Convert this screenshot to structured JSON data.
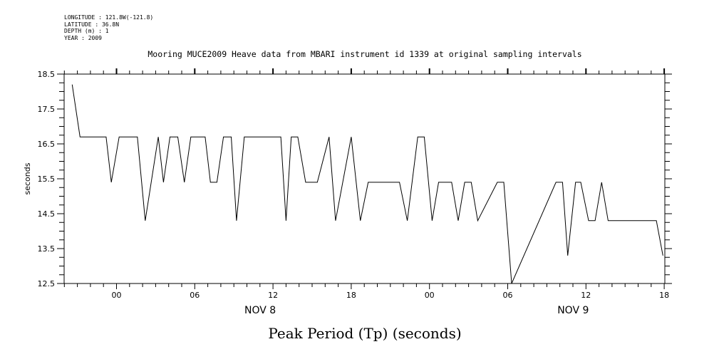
{
  "meta": {
    "longitude": "LONGITUDE : 121.8W(-121.8)",
    "latitude": "LATITUDE : 36.8N",
    "depth": "DEPTH (m) : 1",
    "year": "YEAR : 2009"
  },
  "chart_data": {
    "type": "line",
    "title": "Mooring MUCE2009 Heave data from MBARI instrument id 1339 at original sampling intervals",
    "ylabel": "seconds",
    "xlabel": "Peak Period (Tp) (seconds)",
    "ylim": [
      12.5,
      18.5
    ],
    "xlim": [
      -2.4,
      42.0
    ],
    "y_ticks": [
      "18.5",
      "17.5",
      "16.5",
      "15.5",
      "14.5",
      "13.5",
      "12.5"
    ],
    "x_ticks": [
      {
        "h": 0,
        "label": "00"
      },
      {
        "h": 6,
        "label": "06"
      },
      {
        "h": 12,
        "label": "12"
      },
      {
        "h": 18,
        "label": "18"
      },
      {
        "h": 24,
        "label": "00"
      },
      {
        "h": 30,
        "label": "06"
      },
      {
        "h": 36,
        "label": "12"
      },
      {
        "h": 42,
        "label": "18"
      }
    ],
    "day_labels": [
      {
        "h": 12,
        "label": "NOV  8"
      },
      {
        "h": 36,
        "label": "NOV  9"
      }
    ],
    "grid": false,
    "series": [
      {
        "x": [
          -3.4,
          -2.8,
          -0.8,
          -0.4,
          0.2,
          1.6,
          2.2,
          3.2,
          3.6,
          4.1,
          4.7,
          5.2,
          5.7,
          6.8,
          7.2,
          7.7,
          8.2,
          8.8,
          9.2,
          9.8,
          12.6,
          13.0,
          13.4,
          13.9,
          14.5,
          15.4,
          16.3,
          16.8,
          18.0,
          18.7,
          19.3,
          21.7,
          22.3,
          23.1,
          23.6,
          24.2,
          24.7,
          25.7,
          26.2,
          26.7,
          27.2,
          27.7,
          29.2,
          29.7,
          30.3,
          33.7,
          34.2,
          34.6,
          35.2,
          35.6,
          36.2,
          36.7,
          37.2,
          37.7,
          41.4,
          41.9
        ],
        "y": [
          18.2,
          16.7,
          16.7,
          15.4,
          16.7,
          16.7,
          14.3,
          16.7,
          15.4,
          16.7,
          16.7,
          15.4,
          16.7,
          16.7,
          15.4,
          15.4,
          16.7,
          16.7,
          14.3,
          16.7,
          16.7,
          14.3,
          16.7,
          16.7,
          15.4,
          15.4,
          16.7,
          14.3,
          16.7,
          14.3,
          15.4,
          15.4,
          14.3,
          16.7,
          16.7,
          14.3,
          15.4,
          15.4,
          14.3,
          15.4,
          15.4,
          14.3,
          15.4,
          15.4,
          12.5,
          15.4,
          15.4,
          13.3,
          15.4,
          15.4,
          14.3,
          14.3,
          15.4,
          14.3,
          14.3,
          13.3
        ]
      }
    ]
  }
}
